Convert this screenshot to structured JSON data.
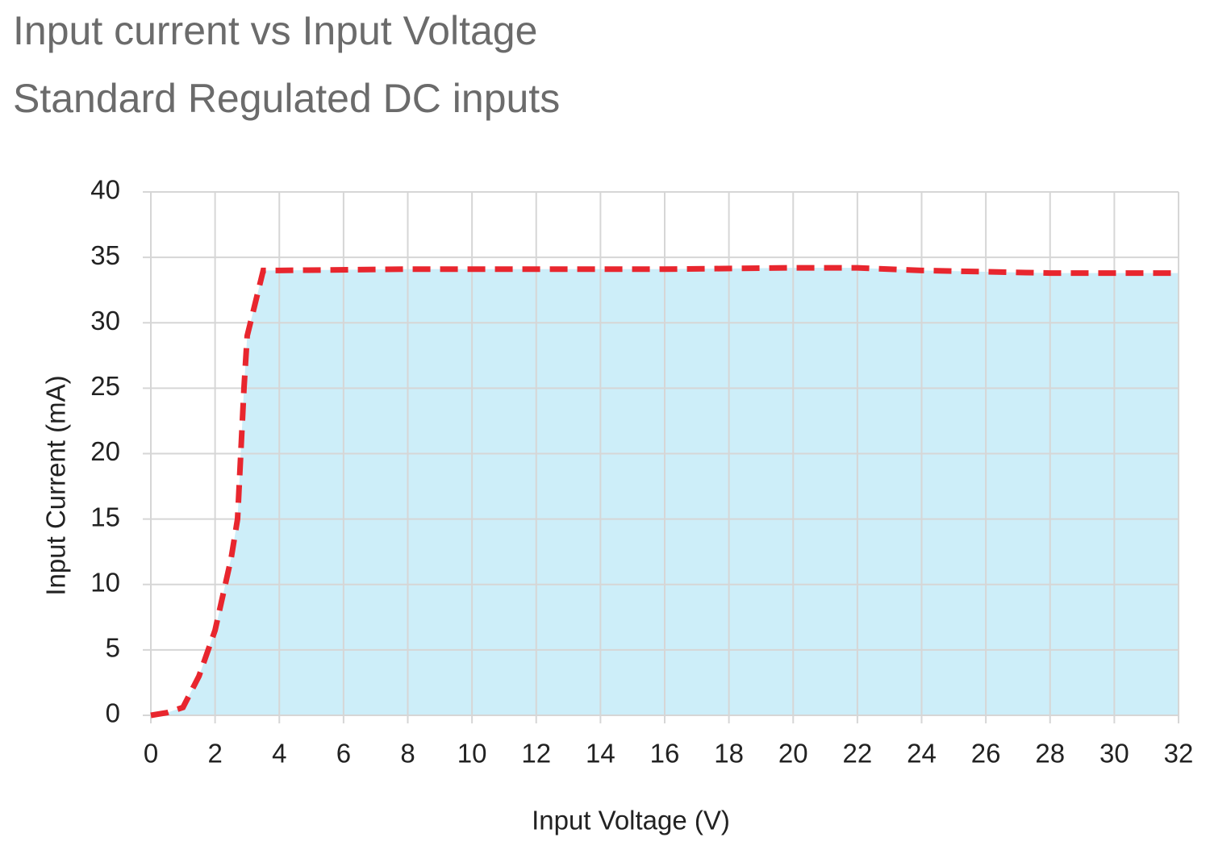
{
  "chart_data": {
    "type": "area",
    "title": "Input current vs Input Voltage",
    "subtitle": "Standard Regulated DC inputs",
    "x_label": "Input Voltage (V)",
    "y_label": "Input Current (mA)",
    "x": [
      0,
      0.5,
      1,
      1.5,
      2,
      2.5,
      2.7,
      2.8,
      2.9,
      3,
      3.2,
      3.5,
      4,
      8,
      12,
      16,
      20,
      22,
      24,
      28,
      32
    ],
    "values": [
      0,
      0.2,
      0.6,
      3,
      6.5,
      12,
      15,
      20,
      25,
      29,
      31,
      34,
      34,
      34.1,
      34.1,
      34.1,
      34.2,
      34.2,
      34,
      33.8,
      33.8
    ],
    "line_color": "#e8262e",
    "fill_color": "#cdeef9",
    "xlim": [
      0,
      32
    ],
    "xticks": [
      0,
      2,
      4,
      6,
      8,
      10,
      12,
      14,
      16,
      18,
      20,
      22,
      24,
      26,
      28,
      30,
      32
    ],
    "ylim": [
      0,
      40
    ],
    "yticks": [
      0,
      5,
      10,
      15,
      20,
      25,
      30,
      35,
      40
    ],
    "grid": true
  }
}
